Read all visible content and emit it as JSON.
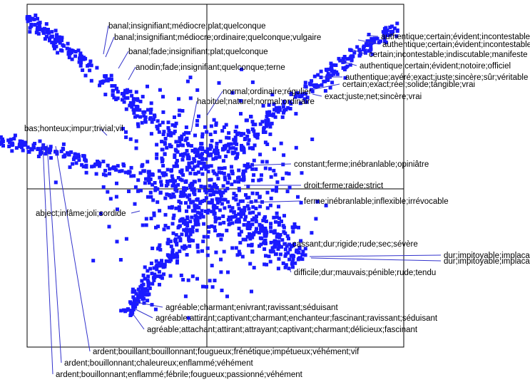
{
  "colors": {
    "points": "#1a1aff",
    "leader": "#3333cc",
    "frame": "#000000",
    "text": "#000000"
  },
  "chart_data": {
    "type": "scatter",
    "title": "",
    "xlabel": "",
    "ylabel": "",
    "xlim": [
      -1.0,
      1.0
    ],
    "ylim": [
      -1.0,
      1.0
    ],
    "axes_cross_at_origin": true,
    "grid": false,
    "legend": "none",
    "clusters": [
      {
        "direction": "upper-left",
        "start": [
          -0.02,
          0.15
        ],
        "end": [
          -0.79,
          0.92
        ],
        "count": 230,
        "spread": 0.025
      },
      {
        "direction": "upper-right",
        "start": [
          0.02,
          0.15
        ],
        "end": [
          0.84,
          0.88
        ],
        "count": 230,
        "spread": 0.025
      },
      {
        "direction": "left",
        "start": [
          -0.08,
          0.02
        ],
        "end": [
          -0.94,
          0.27
        ],
        "count": 170,
        "spread": 0.025
      },
      {
        "direction": "lower-left",
        "start": [
          -0.03,
          -0.12
        ],
        "end": [
          -0.35,
          -0.67
        ],
        "count": 180,
        "spread": 0.025
      },
      {
        "direction": "lower-right",
        "start": [
          0.07,
          -0.08
        ],
        "end": [
          0.42,
          -0.38
        ],
        "count": 170,
        "spread": 0.06
      },
      {
        "direction": "center",
        "start": [
          0.0,
          0.0
        ],
        "end": [
          0.0,
          0.0
        ],
        "count": 650,
        "spread": 0.22
      }
    ],
    "annotations": [
      {
        "text": "banal;insignifiant;médiocre;plat;quelconque",
        "point": [
          -0.79,
          0.89
        ]
      },
      {
        "text": "banal;insignifiant;médiocre;ordinaire;quelconque;vulgaire",
        "point": [
          -0.78,
          0.87
        ]
      },
      {
        "text": "banal;fade;insignifiant;plat;quelconque",
        "point": [
          -0.72,
          0.82
        ]
      },
      {
        "text": "anodin;fade;insignifiant;quelconque;terne",
        "point": [
          -0.62,
          0.72
        ]
      },
      {
        "text": "habituel;naturel;normal;ordinaire",
        "point": [
          -0.12,
          0.39
        ]
      },
      {
        "text": "normal;ordinaire;régulier",
        "point": [
          -0.04,
          0.41
        ]
      },
      {
        "text": "bas;honteux;impur;trivial;vil",
        "point": [
          -0.93,
          0.29
        ]
      },
      {
        "text": "abject;infâme;joli;sordide",
        "point": [
          -0.45,
          0.05
        ]
      },
      {
        "text": "authentique;certain;évident;incontestable",
        "point": [
          0.85,
          0.88
        ]
      },
      {
        "text": "authentique;certain;évident;incontestable",
        "point": [
          0.82,
          0.86
        ]
      },
      {
        "text": "certain;incontestable;indiscutable;manifeste",
        "point": [
          0.79,
          0.82
        ]
      },
      {
        "text": "authentique;certain;évident;notoire;officiel",
        "point": [
          0.73,
          0.76
        ]
      },
      {
        "text": "authentique;avéré;exact;juste;sincère;sûr;véritable",
        "point": [
          0.63,
          0.66
        ]
      },
      {
        "text": "certain;exact;réel;solide;tangible;vrai",
        "point": [
          0.57,
          0.61
        ]
      },
      {
        "text": "exact;juste;net;sincère;vrai",
        "point": [
          0.53,
          0.57
        ]
      },
      {
        "text": "constant;ferme;inébranlable;opiniâtre",
        "point": [
          0.18,
          0.13
        ]
      },
      {
        "text": "droit;ferme;raide;strict",
        "point": [
          0.16,
          0.02
        ]
      },
      {
        "text": "ferme;inébranlable;inflexible;irrévocable",
        "point": [
          0.18,
          -0.08
        ]
      },
      {
        "text": "cassant;dur;rigide;rude;sec;sévère",
        "point": [
          0.33,
          -0.31
        ]
      },
      {
        "text": "dur;impitoyable;implacable;inexorable;inflexible;intraitable",
        "point": [
          0.45,
          -0.36
        ]
      },
      {
        "text": "dur;impitoyable;implacable;inflexible;intraitable;intransigeant",
        "point": [
          0.45,
          -0.37
        ]
      },
      {
        "text": "difficile;dur;mauvais;pénible;rude;tendu",
        "point": [
          0.36,
          -0.44
        ]
      },
      {
        "text": "agréable;charmant;enivrant;ravissant;séduisant",
        "point": [
          -0.33,
          -0.62
        ]
      },
      {
        "text": "agréable;attirant;captivant;charmant;enchanteur;fascinant;ravissant;séduisant",
        "point": [
          -0.33,
          -0.66
        ]
      },
      {
        "text": "agréable;attachant;attirant;attrayant;captivant;charmant;délicieux;fascinant",
        "point": [
          -0.35,
          -0.69
        ]
      },
      {
        "text": "ardent;bouillant;bouillonnant;fougueux;frénétique;impétueux;véhément;vif",
        "point": [
          -0.87,
          0.19
        ]
      },
      {
        "text": "ardent;bouillonnant;chaleureux;enflammé;véhément",
        "point": [
          -0.9,
          0.2
        ]
      },
      {
        "text": "ardent;bouillonnant;enflammé;fébrile;fougueux;passionné;véhément",
        "point": [
          -0.93,
          0.21
        ]
      }
    ]
  }
}
